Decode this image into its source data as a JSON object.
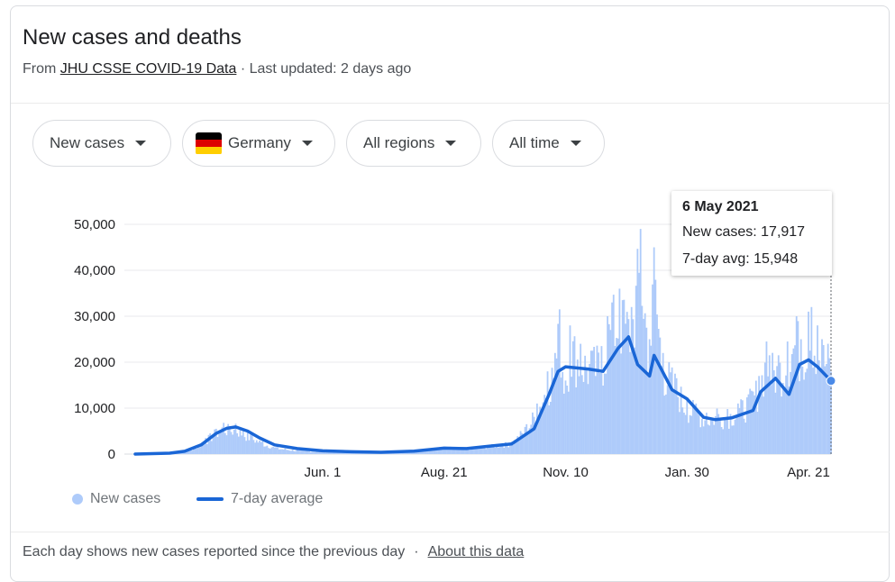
{
  "header": {
    "title": "New cases and deaths",
    "source_prefix": "From",
    "source_link": "JHU CSSE COVID-19 Data",
    "updated": "· Last updated: 2 days ago"
  },
  "filters": {
    "metric": "New cases",
    "country": "Germany",
    "region": "All regions",
    "time": "All time"
  },
  "flag_colors": [
    "#000000",
    "#dd0000",
    "#ffce00"
  ],
  "colors": {
    "bars": "#aecbfa",
    "line": "#1a66d6",
    "grid": "#e8eaed"
  },
  "tooltip": {
    "date": "6 May 2021",
    "new_cases_label": "New cases: 17,917",
    "avg_label": "7-day avg: 15,948"
  },
  "legend": {
    "bars": "New cases",
    "line": "7-day average"
  },
  "footer": {
    "note": "Each day shows new cases reported since the previous day",
    "sep": "·",
    "link": "About this data"
  },
  "chart_data": {
    "type": "bar",
    "title": "New cases and deaths",
    "x_ticks": [
      "Jun. 1",
      "Aug. 21",
      "Nov. 10",
      "Jan. 30",
      "Apr. 21"
    ],
    "y_ticks": [
      "0",
      "10,000",
      "20,000",
      "30,000",
      "40,000",
      "50,000"
    ],
    "ylim": [
      0,
      50000
    ],
    "grid": true,
    "legend_position": "bottom-left",
    "date_range": [
      "2020-01-28",
      "2021-05-06"
    ],
    "series": [
      {
        "name": "7-day average",
        "kind": "line",
        "points": [
          [
            "2020-01-28",
            0
          ],
          [
            "2020-02-20",
            200
          ],
          [
            "2020-03-01",
            600
          ],
          [
            "2020-03-12",
            2000
          ],
          [
            "2020-03-22",
            4500
          ],
          [
            "2020-03-29",
            5600
          ],
          [
            "2020-04-04",
            5900
          ],
          [
            "2020-04-12",
            5000
          ],
          [
            "2020-04-20",
            3500
          ],
          [
            "2020-04-30",
            2000
          ],
          [
            "2020-05-15",
            1200
          ],
          [
            "2020-06-01",
            700
          ],
          [
            "2020-06-20",
            500
          ],
          [
            "2020-07-10",
            400
          ],
          [
            "2020-08-01",
            650
          ],
          [
            "2020-08-21",
            1300
          ],
          [
            "2020-09-05",
            1200
          ],
          [
            "2020-09-20",
            1700
          ],
          [
            "2020-10-05",
            2200
          ],
          [
            "2020-10-20",
            5500
          ],
          [
            "2020-10-30",
            13000
          ],
          [
            "2020-11-05",
            18000
          ],
          [
            "2020-11-10",
            19000
          ],
          [
            "2020-11-25",
            18500
          ],
          [
            "2020-12-05",
            18000
          ],
          [
            "2020-12-15",
            23000
          ],
          [
            "2020-12-22",
            25500
          ],
          [
            "2020-12-28",
            19500
          ],
          [
            "2021-01-05",
            17000
          ],
          [
            "2021-01-08",
            21500
          ],
          [
            "2021-01-12",
            19000
          ],
          [
            "2021-01-20",
            14000
          ],
          [
            "2021-01-30",
            12000
          ],
          [
            "2021-02-10",
            8000
          ],
          [
            "2021-02-18",
            7500
          ],
          [
            "2021-03-01",
            7900
          ],
          [
            "2021-03-15",
            9500
          ],
          [
            "2021-03-20",
            13500
          ],
          [
            "2021-03-30",
            16500
          ],
          [
            "2021-04-08",
            13000
          ],
          [
            "2021-04-15",
            19500
          ],
          [
            "2021-04-21",
            20500
          ],
          [
            "2021-04-27",
            19000
          ],
          [
            "2021-05-06",
            15948
          ]
        ]
      },
      {
        "name": "New cases",
        "kind": "bar",
        "points": [
          [
            "2020-02-20",
            250
          ],
          [
            "2020-03-01",
            800
          ],
          [
            "2020-03-08",
            1500
          ],
          [
            "2020-03-15",
            3500
          ],
          [
            "2020-03-22",
            5500
          ],
          [
            "2020-03-27",
            6800
          ],
          [
            "2020-03-31",
            6100
          ],
          [
            "2020-04-04",
            6600
          ],
          [
            "2020-04-09",
            5300
          ],
          [
            "2020-04-15",
            4100
          ],
          [
            "2020-04-22",
            2800
          ],
          [
            "2020-05-01",
            1500
          ],
          [
            "2020-05-15",
            900
          ],
          [
            "2020-06-01",
            600
          ],
          [
            "2020-06-20",
            800
          ],
          [
            "2020-07-10",
            400
          ],
          [
            "2020-08-01",
            900
          ],
          [
            "2020-08-21",
            1600
          ],
          [
            "2020-09-05",
            1400
          ],
          [
            "2020-09-20",
            2000
          ],
          [
            "2020-10-05",
            2700
          ],
          [
            "2020-10-15",
            6500
          ],
          [
            "2020-10-22",
            11000
          ],
          [
            "2020-10-29",
            18000
          ],
          [
            "2020-11-03",
            22000
          ],
          [
            "2020-11-06",
            31500
          ],
          [
            "2020-11-10",
            16000
          ],
          [
            "2020-11-13",
            28000
          ],
          [
            "2020-11-20",
            24000
          ],
          [
            "2020-11-27",
            22500
          ],
          [
            "2020-12-04",
            23500
          ],
          [
            "2020-12-08",
            30000
          ],
          [
            "2020-12-11",
            33000
          ],
          [
            "2020-12-16",
            36000
          ],
          [
            "2020-12-18",
            33500
          ],
          [
            "2020-12-24",
            32000
          ],
          [
            "2020-12-30",
            49000
          ],
          [
            "2021-01-05",
            25000
          ],
          [
            "2021-01-08",
            45000
          ],
          [
            "2021-01-14",
            22000
          ],
          [
            "2021-01-22",
            17500
          ],
          [
            "2021-01-30",
            12000
          ],
          [
            "2021-02-05",
            11000
          ],
          [
            "2021-02-12",
            9000
          ],
          [
            "2021-02-19",
            9900
          ],
          [
            "2021-02-26",
            9800
          ],
          [
            "2021-03-05",
            11000
          ],
          [
            "2021-03-12",
            13000
          ],
          [
            "2021-03-19",
            17000
          ],
          [
            "2021-03-24",
            24500
          ],
          [
            "2021-03-26",
            21500
          ],
          [
            "2021-04-01",
            21500
          ],
          [
            "2021-04-07",
            24500
          ],
          [
            "2021-04-13",
            30000
          ],
          [
            "2021-04-16",
            25000
          ],
          [
            "2021-04-21",
            31000
          ],
          [
            "2021-04-23",
            32000
          ],
          [
            "2021-04-27",
            28000
          ],
          [
            "2021-04-30",
            25000
          ],
          [
            "2021-05-04",
            24000
          ],
          [
            "2021-05-06",
            17917
          ]
        ]
      }
    ]
  }
}
